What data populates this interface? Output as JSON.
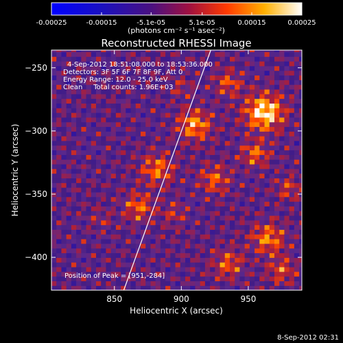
{
  "chart_data": {
    "type": "heatmap",
    "title": "Reconstructed RHESSI Image",
    "xlabel": "Heliocentric X (arcsec)",
    "ylabel": "Heliocentric Y (arcsec)",
    "xlim": [
      803,
      990
    ],
    "ylim": [
      -426,
      -236
    ],
    "x_ticks": [
      850,
      900,
      950
    ],
    "y_ticks": [
      -250,
      -300,
      -350,
      -400
    ],
    "colorbar": {
      "ticks": [
        "-0.00025",
        "-0.00015",
        "-5.1e-05",
        "5.1e-05",
        "0.00015",
        "0.00025"
      ],
      "values": [
        -0.00025,
        -0.00015,
        -5.1e-05,
        5.1e-05,
        0.00015,
        0.00025
      ],
      "unit_label": "(photons cm⁻² s⁻¹ asec⁻²)",
      "range": [
        -0.00025,
        0.00025
      ],
      "colormap": [
        "#0000ff",
        "#3a006a",
        "#6a1e8a",
        "#c83030",
        "#ff7a00",
        "#ffd000",
        "#ffffff"
      ]
    },
    "annotations": [
      "4-Sep-2012 18:51:08.000 to 18:53:36.000",
      "Detectors: 3F 5F 6F 7F 8F 9F, Att 0",
      "Energy Range: 12.0 - 25.0 keV",
      "Clean     Total counts: 1.96E+03"
    ],
    "peak": {
      "label": "Position of Peak = [951,-284]",
      "x": 951,
      "y": -284
    },
    "limb_line": {
      "x1": 857,
      "y1": -426,
      "x2": 922,
      "y2": -236
    },
    "hotspots": [
      {
        "x": 962,
        "y": -285,
        "value": 0.00025,
        "r": 14
      },
      {
        "x": 935,
        "y": -262,
        "value": 0.00012,
        "r": 10
      },
      {
        "x": 910,
        "y": -295,
        "value": 0.00018,
        "r": 12
      },
      {
        "x": 955,
        "y": -318,
        "value": 0.00014,
        "r": 10
      },
      {
        "x": 980,
        "y": -345,
        "value": 0.0001,
        "r": 9
      },
      {
        "x": 925,
        "y": -338,
        "value": 0.00013,
        "r": 11
      },
      {
        "x": 965,
        "y": -385,
        "value": 0.00016,
        "r": 12
      },
      {
        "x": 935,
        "y": -405,
        "value": 0.00013,
        "r": 11
      },
      {
        "x": 882,
        "y": -330,
        "value": 0.00015,
        "r": 12
      },
      {
        "x": 868,
        "y": -360,
        "value": 0.00014,
        "r": 11
      },
      {
        "x": 900,
        "y": -265,
        "value": 7e-05,
        "r": 8
      },
      {
        "x": 840,
        "y": -370,
        "value": 6e-05,
        "r": 8
      },
      {
        "x": 895,
        "y": -365,
        "value": 8e-05,
        "r": 9
      },
      {
        "x": 975,
        "y": -410,
        "value": 0.00012,
        "r": 10
      }
    ],
    "grid": false
  },
  "timestamp": "8-Sep-2012 02:31"
}
